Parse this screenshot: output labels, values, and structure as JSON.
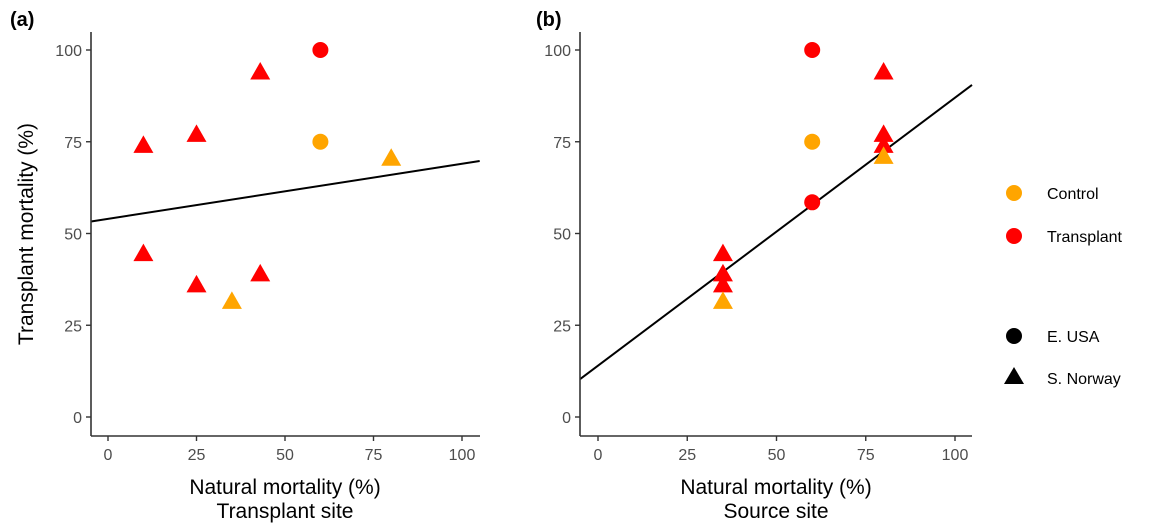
{
  "chart_data": [
    {
      "type": "scatter",
      "panel_label": "(a)",
      "xlabel": "Natural mortality (%)",
      "xlabel2": "Transplant site",
      "ylabel": "Transplant mortality (%)",
      "xlim": [
        -5,
        105
      ],
      "ylim": [
        -3,
        103
      ],
      "xticks": [
        0,
        25,
        50,
        75,
        100
      ],
      "yticks": [
        0,
        25,
        50,
        75,
        100
      ],
      "grid": false,
      "points": [
        {
          "x": 60,
          "y": 100,
          "group": "Transplant",
          "region": "E. USA"
        },
        {
          "x": 60,
          "y": 75,
          "group": "Control",
          "region": "E. USA"
        },
        {
          "x": 10,
          "y": 74,
          "group": "Transplant",
          "region": "S. Norway"
        },
        {
          "x": 25,
          "y": 77,
          "group": "Transplant",
          "region": "S. Norway"
        },
        {
          "x": 43,
          "y": 94,
          "group": "Transplant",
          "region": "S. Norway"
        },
        {
          "x": 80,
          "y": 70.5,
          "group": "Control",
          "region": "S. Norway"
        },
        {
          "x": 10,
          "y": 44.5,
          "group": "Transplant",
          "region": "S. Norway"
        },
        {
          "x": 25,
          "y": 36,
          "group": "Transplant",
          "region": "S. Norway"
        },
        {
          "x": 43,
          "y": 39,
          "group": "Transplant",
          "region": "S. Norway"
        },
        {
          "x": 35,
          "y": 31.5,
          "group": "Control",
          "region": "S. Norway"
        }
      ],
      "fit_line": {
        "intercept": 54,
        "slope": 0.15
      }
    },
    {
      "type": "scatter",
      "panel_label": "(b)",
      "xlabel": "Natural mortality (%)",
      "xlabel2": "Source site",
      "ylabel": "",
      "xlim": [
        -5,
        105
      ],
      "ylim": [
        -3,
        103
      ],
      "xticks": [
        0,
        25,
        50,
        75,
        100
      ],
      "yticks": [
        0,
        25,
        50,
        75,
        100
      ],
      "grid": false,
      "points": [
        {
          "x": 60,
          "y": 100,
          "group": "Transplant",
          "region": "E. USA"
        },
        {
          "x": 60,
          "y": 75,
          "group": "Control",
          "region": "E. USA"
        },
        {
          "x": 60,
          "y": 58.5,
          "group": "Transplant",
          "region": "E. USA"
        },
        {
          "x": 80,
          "y": 94,
          "group": "Transplant",
          "region": "S. Norway"
        },
        {
          "x": 80,
          "y": 77,
          "group": "Transplant",
          "region": "S. Norway"
        },
        {
          "x": 80,
          "y": 74,
          "group": "Transplant",
          "region": "S. Norway"
        },
        {
          "x": 80,
          "y": 71,
          "group": "Control",
          "region": "S. Norway"
        },
        {
          "x": 35,
          "y": 44.5,
          "group": "Transplant",
          "region": "S. Norway"
        },
        {
          "x": 35,
          "y": 39,
          "group": "Transplant",
          "region": "S. Norway"
        },
        {
          "x": 35,
          "y": 36,
          "group": "Transplant",
          "region": "S. Norway"
        },
        {
          "x": 35,
          "y": 31.5,
          "group": "Control",
          "region": "S. Norway"
        }
      ],
      "fit_line": {
        "intercept": 14,
        "slope": 0.73
      }
    }
  ],
  "legend": {
    "placement": "right",
    "color": [
      {
        "label": "Control",
        "color": "#FFA500"
      },
      {
        "label": "Transplant",
        "color": "#FF0000"
      }
    ],
    "shape": [
      {
        "label": "E. USA",
        "shape": "circle"
      },
      {
        "label": "S. Norway",
        "shape": "triangle"
      }
    ]
  },
  "colors": {
    "Control": "#FFA500",
    "Transplant": "#FF0000",
    "line": "#000000",
    "axis": "#333333"
  }
}
